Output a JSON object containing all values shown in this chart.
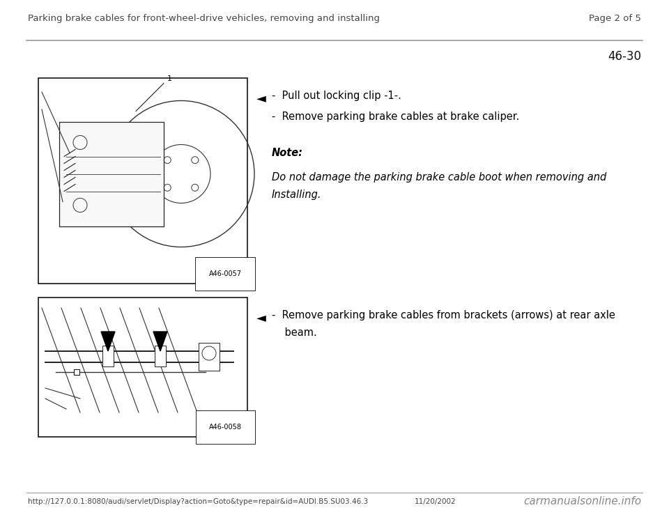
{
  "page_title_left": "Parking brake cables for front-wheel-drive vehicles, removing and installing",
  "page_title_right": "Page 2 of 5",
  "page_number": "46-30",
  "footer_url": "http://127.0.0.1:8080/audi/servlet/Display?action=Goto&type=repair&id=AUDI.B5.SU03.46.3",
  "footer_date": "11/20/2002",
  "footer_brand": "carmanualsonline.info",
  "bg_color": "#ffffff",
  "text_color": "#000000",
  "gray_line_color": "#999999",
  "section1": {
    "image_label": "A46-0057",
    "bullet1": "-  Pull out locking clip -1-.",
    "bullet2": "-  Remove parking brake cables at brake caliper.",
    "note_label": "Note:",
    "note_line1": "Do not damage the parking brake cable boot when removing and",
    "note_line2": "Installing."
  },
  "section2": {
    "image_label": "A46-0058",
    "bullet_line1": "-  Remove parking brake cables from brackets (arrows) at rear axle",
    "bullet_line2": "    beam."
  },
  "font_size_header": 9.5,
  "font_size_body": 10.5,
  "font_size_note": 10.5,
  "font_size_page_num": 12,
  "font_size_arrow": 13,
  "font_size_footer": 7.5,
  "font_size_brand": 11
}
